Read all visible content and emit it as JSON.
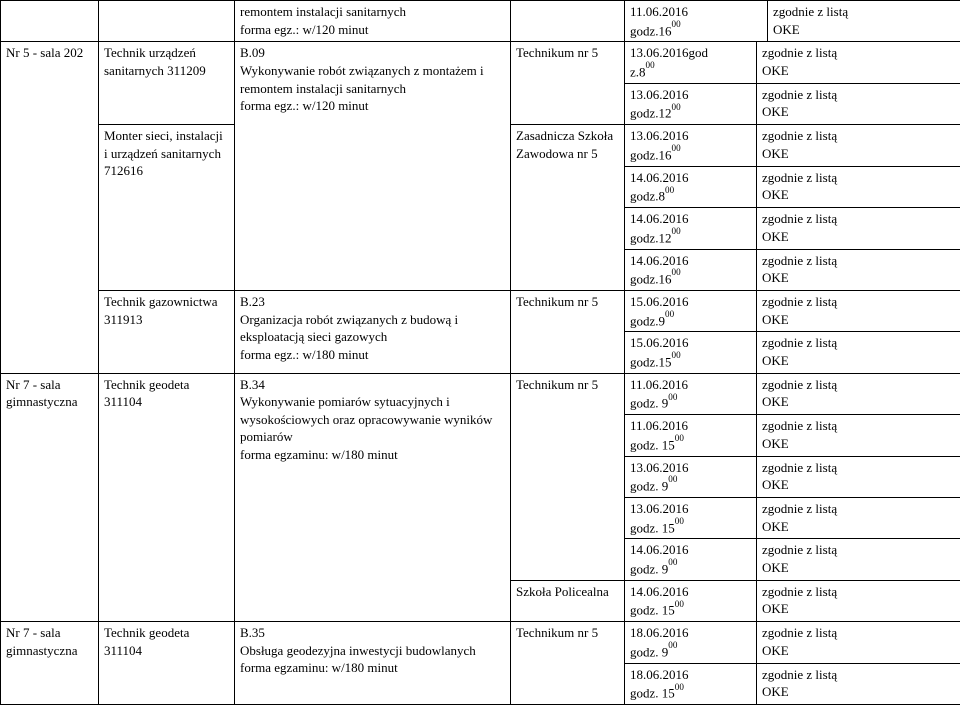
{
  "col_widths": [
    "98px",
    "136px",
    "276px",
    "114px",
    "132px",
    "204px"
  ],
  "font_size": "13px",
  "cells": {
    "r0c2": "remontem instalacji sanitarnych<br>forma egz.: w/120 minut",
    "r0c4a": "11.06.2016<br>godz.16<sup>00</sup>",
    "r0c4b": "zgodnie z listą<br>OKE",
    "r1c0": "Nr 5 - sala 202",
    "r1c1a": "Technik urządzeń sanitarnych 311209",
    "r1c1b": "Monter sieci, instalacji i urządzeń sanitarnych 712616",
    "r1c1c": "Technik gazownictwa 311913",
    "r1c2a": "B.09<br>Wykonywanie robót związanych z montażem i remontem instalacji sanitarnych<br>forma egz.: w/120 minut",
    "r1c2b": "B.23<br>Organizacja robót związanych z budową i eksploatacją sieci gazowych<br>forma egz.: w/180 minut",
    "r1c3a": "Technikum nr 5",
    "r1c3b": "Zasadnicza Szkoła Zawodowa nr 5",
    "r1c3c": "Technikum nr 5",
    "d1": "13.06.2016god<br>z.8<sup>00</sup>",
    "d2": "13.06.2016<br>godz.12<sup>00</sup>",
    "d3": "13.06.2016<br>godz.16<sup>00</sup>",
    "d4": "14.06.2016<br>godz.8<sup>00</sup>",
    "d5": "14.06.2016<br>godz.12<sup>00</sup>",
    "d6": "14.06.2016<br>godz.16<sup>00</sup>",
    "d7": "15.06.2016<br>godz.9<sup>00</sup>",
    "d8": "15.06.2016<br>godz.15<sup>00</sup>",
    "oke": "zgodnie z listą<br>OKE",
    "r7c0a": "Nr 7 - sala gimnastyczna",
    "r7c0b": "Nr 7 - sala gimnastyczna",
    "r7c1a": "Technik  geodeta 311104",
    "r7c1b": "Technik  geodeta 311104",
    "r7c2a": "B.34<br>Wykonywanie pomiarów sytuacyjnych i wysokościowych oraz opracowywanie wyników pomiarów<br>forma egzaminu: w/180 minut",
    "r7c2b": "B.35<br>Obsługa geodezyjna inwestycji budowlanych<br>forma egzaminu: w/180 minut",
    "r7c3a": "Technikum nr 5",
    "r7c3b": "Szkoła Policealna",
    "r7c3c": "Technikum nr 5",
    "g1": "11.06.2016<br>godz. 9<sup>00</sup>",
    "g2": "11.06.2016<br>godz. 15<sup>00</sup>",
    "g3": "13.06.2016<br>godz. 9<sup>00</sup>",
    "g4": "13.06.2016<br>godz. 15<sup>00</sup>",
    "g5": "14.06.2016<br>godz. 9<sup>00</sup>",
    "g6": "14.06.2016<br>godz. 15<sup>00</sup>",
    "g7": "18.06.2016<br>godz. 9<sup>00</sup>",
    "g8": "18.06.2016<br>godz. 15<sup>00</sup>"
  }
}
